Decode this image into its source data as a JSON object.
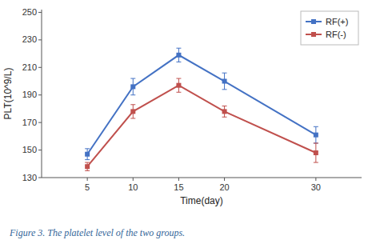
{
  "chart_data": {
    "type": "line",
    "x": [
      5,
      10,
      15,
      20,
      30
    ],
    "series": [
      {
        "name": "RF(+)",
        "color": "#4472C4",
        "marker": "square",
        "values": [
          147,
          196,
          219,
          200,
          161
        ],
        "errors": [
          4,
          6,
          5,
          6,
          6
        ]
      },
      {
        "name": "RF(-)",
        "color": "#C0504D",
        "marker": "square",
        "values": [
          138,
          178,
          197,
          178,
          148
        ],
        "errors": [
          3,
          5,
          5,
          4,
          7
        ]
      }
    ],
    "x_label": "Time(day)",
    "y_label": "PLT(10^9/L)",
    "xlim": [
      0,
      35
    ],
    "xticks": [
      5,
      10,
      15,
      20,
      30
    ],
    "ylim": [
      130,
      252
    ],
    "yticks": [
      130,
      150,
      170,
      190,
      210,
      230,
      250
    ],
    "grid": false,
    "legend": "upper right",
    "annotations": [
      "Figure 3. The platelet level of the two groups."
    ]
  }
}
